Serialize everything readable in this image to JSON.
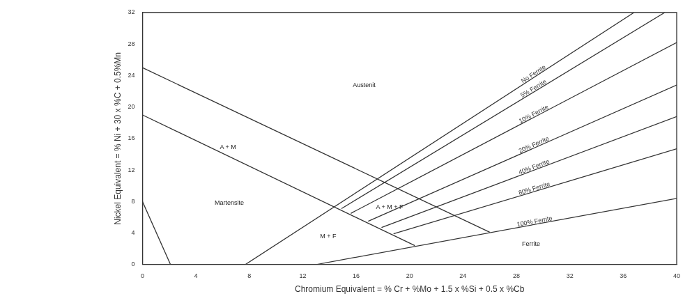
{
  "chart_data": {
    "type": "line",
    "xlabel": "Chromium Equivalent = % Cr + %Mo + 1.5 x %Si + 0.5 x %Cb",
    "ylabel": "Nickel Equivalent = % Ni + 30 x %C + 0.5%Mn",
    "xlim": [
      0,
      40
    ],
    "xticks": [
      0,
      4,
      8,
      12,
      16,
      20,
      24,
      28,
      32,
      36,
      40
    ],
    "ylim": [
      0,
      32
    ],
    "yticks": [
      0,
      4,
      8,
      12,
      16,
      20,
      24,
      28,
      32
    ],
    "grid": false,
    "legend": false,
    "marker": "none",
    "line_style": "solid",
    "series": [
      {
        "color": "#333333",
        "x": [
          0,
          26
        ],
        "values": [
          25,
          4.1
        ]
      },
      {
        "color": "#333333",
        "x": [
          0,
          20.4
        ],
        "values": [
          19,
          2.4
        ]
      },
      {
        "color": "#333333",
        "x": [
          0,
          2.1
        ],
        "values": [
          8,
          0
        ]
      },
      {
        "name": "No Ferrite",
        "color": "#333333",
        "x": [
          7.7,
          36.8
        ],
        "values": [
          0,
          32
        ]
      },
      {
        "name": "5% Ferrite",
        "color": "#333333",
        "x": [
          14.9,
          39.1
        ],
        "values": [
          7.1,
          32
        ]
      },
      {
        "name": "10% Ferrite",
        "color": "#333333",
        "x": [
          15.6,
          40
        ],
        "values": [
          6.5,
          28.2
        ]
      },
      {
        "name": "20% Ferrite",
        "color": "#333333",
        "x": [
          16.9,
          40
        ],
        "values": [
          5.5,
          22.8
        ]
      },
      {
        "name": "40% Ferrite",
        "color": "#333333",
        "x": [
          17.9,
          40
        ],
        "values": [
          4.7,
          18.8
        ]
      },
      {
        "name": "80% Ferrite",
        "color": "#333333",
        "x": [
          18.8,
          40
        ],
        "values": [
          3.9,
          14.7
        ]
      },
      {
        "name": "100% Ferrite",
        "color": "#333333",
        "x": [
          13,
          40
        ],
        "values": [
          0,
          8.4
        ]
      }
    ],
    "annotations": [
      "Austenit",
      "A + M",
      "Martensite",
      "M + F",
      "A + M + F",
      "Ferrite"
    ]
  }
}
